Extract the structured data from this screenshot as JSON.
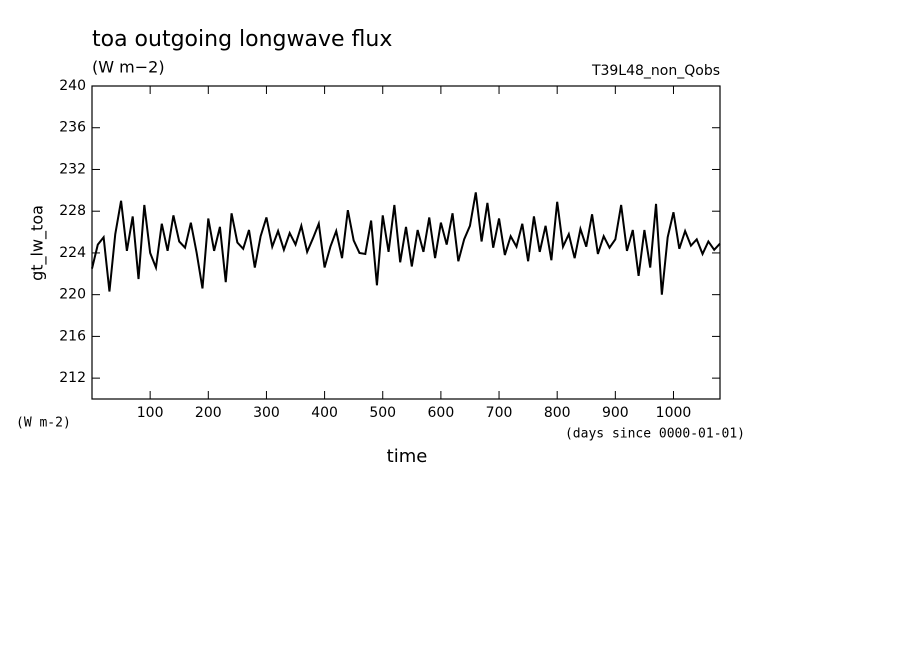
{
  "chart_data": {
    "type": "line",
    "title": "toa outgoing longwave flux",
    "subtitle": "(W m−2)",
    "run_label": "T39L48_non_Qobs",
    "y_label": "gt_lw_toa",
    "y_unit": "(W m-2)",
    "x_label": "time",
    "x_unit": "(days since 0000-01-01)",
    "xlim": [
      0,
      1080
    ],
    "ylim": [
      210,
      240
    ],
    "xticks": [
      100,
      200,
      300,
      400,
      500,
      600,
      700,
      800,
      900,
      1000
    ],
    "yticks": [
      212,
      216,
      220,
      224,
      228,
      232,
      236,
      240
    ],
    "x": [
      0,
      10,
      20,
      30,
      40,
      50,
      60,
      70,
      80,
      90,
      100,
      110,
      120,
      130,
      140,
      150,
      160,
      170,
      180,
      190,
      200,
      210,
      220,
      230,
      240,
      250,
      260,
      270,
      280,
      290,
      300,
      310,
      320,
      330,
      340,
      350,
      360,
      370,
      380,
      390,
      400,
      410,
      420,
      430,
      440,
      450,
      460,
      470,
      480,
      490,
      500,
      510,
      520,
      530,
      540,
      550,
      560,
      570,
      580,
      590,
      600,
      610,
      620,
      630,
      640,
      650,
      660,
      670,
      680,
      690,
      700,
      710,
      720,
      730,
      740,
      750,
      760,
      770,
      780,
      790,
      800,
      810,
      820,
      830,
      840,
      850,
      860,
      870,
      880,
      890,
      900,
      910,
      920,
      930,
      940,
      950,
      960,
      970,
      980,
      990,
      1000,
      1010,
      1020,
      1030,
      1040,
      1050,
      1060,
      1070,
      1080
    ],
    "series": [
      {
        "color": "#000000",
        "values": [
          222.5,
          224.8,
          225.5,
          220.3,
          225.8,
          229,
          224.2,
          227.5,
          221.5,
          228.6,
          224,
          222.6,
          226.8,
          224.2,
          227.6,
          225.1,
          224.5,
          226.9,
          224,
          220.6,
          227.3,
          224.2,
          226.5,
          221.2,
          227.8,
          225,
          224.4,
          226.2,
          222.6,
          225.6,
          227.4,
          224.6,
          226.1,
          224.3,
          225.9,
          224.8,
          226.6,
          224.1,
          225.4,
          226.8,
          222.6,
          224.6,
          226.1,
          223.5,
          228.1,
          225.2,
          224,
          223.9,
          227.1,
          220.9,
          227.6,
          224.1,
          228.6,
          223.1,
          226.5,
          222.7,
          226.2,
          224.1,
          227.4,
          223.5,
          226.9,
          224.8,
          227.8,
          223.2,
          225.3,
          226.6,
          229.8,
          225.1,
          228.8,
          224.5,
          227.3,
          223.8,
          225.6,
          224.6,
          226.8,
          223.2,
          227.5,
          224.1,
          226.6,
          223.3,
          228.9,
          224.6,
          225.8,
          223.5,
          226.3,
          224.6,
          227.7,
          223.9,
          225.6,
          224.5,
          225.3,
          228.6,
          224.2,
          226.2,
          221.8,
          226.2,
          222.6,
          228.7,
          220,
          225.5,
          227.9,
          224.4,
          226.1,
          224.7,
          225.3,
          223.9,
          225.1,
          224.3,
          224.9
        ]
      }
    ]
  }
}
